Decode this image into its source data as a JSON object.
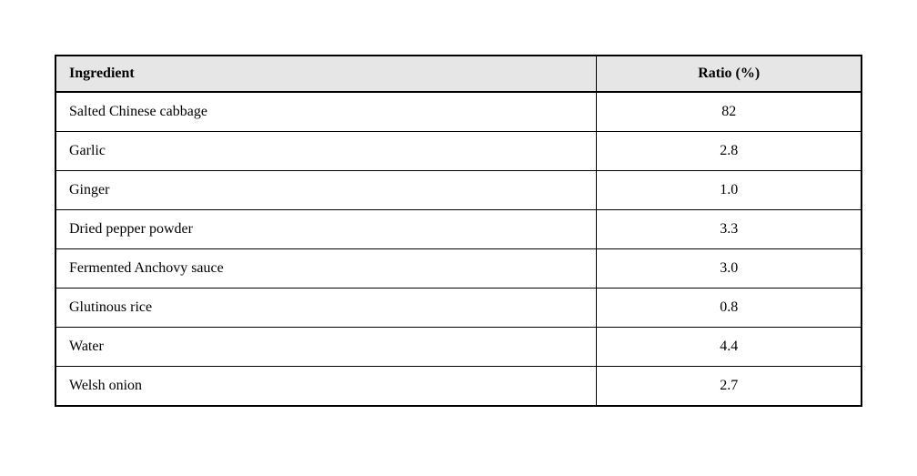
{
  "table": {
    "header_bg": "#e6e6e6",
    "border_color": "#000000",
    "background_color": "#ffffff",
    "font_family": "Times New Roman",
    "header_fontsize_pt": 16,
    "cell_fontsize_pt": 16,
    "columns": [
      {
        "label": "Ingredient",
        "align": "left",
        "width_pct": 40
      },
      {
        "label": "Ratio (%)",
        "align": "center",
        "width_pct": 60
      }
    ],
    "rows": [
      {
        "ingredient": "Salted Chinese cabbage",
        "ratio": "82"
      },
      {
        "ingredient": "Garlic",
        "ratio": "2.8"
      },
      {
        "ingredient": "Ginger",
        "ratio": "1.0"
      },
      {
        "ingredient": "Dried pepper powder",
        "ratio": "3.3"
      },
      {
        "ingredient": "Fermented Anchovy sauce",
        "ratio": "3.0"
      },
      {
        "ingredient": "Glutinous rice",
        "ratio": "0.8"
      },
      {
        "ingredient": "Water",
        "ratio": "4.4"
      },
      {
        "ingredient": "Welsh onion",
        "ratio": "2.7"
      }
    ]
  }
}
